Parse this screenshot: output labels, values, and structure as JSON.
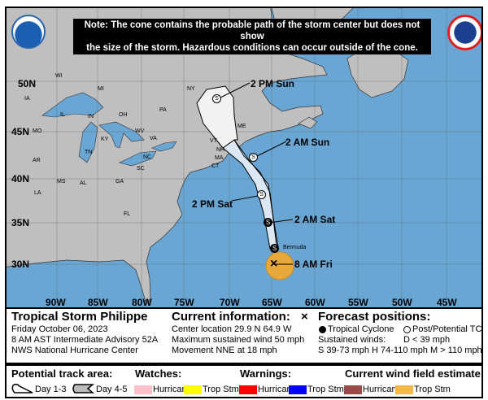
{
  "note": {
    "line1": "Note: The cone contains the probable path of the storm center but does not show",
    "line2": "the size of the storm. Hazardous conditions can occur outside of the cone."
  },
  "logos": {
    "left": "NOAA",
    "right": "NATIONAL WEATHER SERVICE"
  },
  "map": {
    "lat_labels": [
      "50N",
      "45N",
      "40N",
      "35N",
      "30N"
    ],
    "lon_labels": [
      "90W",
      "85W",
      "80W",
      "75W",
      "70W",
      "65W",
      "60W",
      "55W",
      "50W",
      "45W"
    ],
    "states": [
      "WI",
      "MI",
      "IA",
      "IL",
      "IN",
      "OH",
      "PA",
      "NY",
      "MO",
      "KY",
      "WV",
      "VA",
      "TN",
      "NC",
      "AR",
      "SC",
      "MS",
      "AL",
      "GA",
      "LA",
      "FL",
      "ME",
      "VT",
      "NH",
      "MA",
      "CT"
    ],
    "place": "Bermuda",
    "forecast_points": [
      {
        "label": "8 AM Fri",
        "type": "current"
      },
      {
        "label": "",
        "type": "tropical-storm"
      },
      {
        "label": "2 AM Sat",
        "type": "tropical-storm"
      },
      {
        "label": "2 PM Sat",
        "type": "post-tropical"
      },
      {
        "label": "2 AM Sun",
        "type": "post-tropical"
      },
      {
        "label": "2 PM Sun",
        "type": "post-tropical"
      }
    ],
    "symbol": "S",
    "colors": {
      "land": "#bfbfbf",
      "water": "#6aa6d3",
      "cone_day13": "#dbe8f4",
      "cone_day45": "#f2f2f2",
      "wind_trop_stm": "#e8a83a"
    }
  },
  "info": {
    "storm": "Tropical Storm Philippe",
    "date": "Friday October 06, 2023",
    "advisory": "8 AM AST Intermediate Advisory 52A",
    "center": "NWS National Hurricane Center",
    "current_title": "Current information:",
    "current_icon": "×",
    "location": "Center location 29.9 N 64.9 W",
    "wind": "Maximum sustained wind 50 mph",
    "movement": "Movement NNE at 18 mph",
    "forecast_title": "Forecast positions:",
    "tc": "Tropical Cyclone",
    "ptc": "Post/Potential TC",
    "sustained": "Sustained winds:",
    "d": "D < 39 mph",
    "shm": "S 39-73 mph  H 74-110 mph  M > 110 mph"
  },
  "legend": {
    "track_title": "Potential track area:",
    "day13": "Day 1-3",
    "day45": "Day 4-5",
    "watches_title": "Watches:",
    "warnings_title": "Warnings:",
    "wind_title": "Current wind field estimate:",
    "hurricane": "Hurricane",
    "tropstm": "Trop Stm",
    "colors": {
      "watch_hurricane": "#ffc0cb",
      "watch_tropstm": "#ffff00",
      "warn_hurricane": "#ff0000",
      "warn_tropstm": "#0000ff",
      "wind_hurricane": "#9c4a4a",
      "wind_tropstm": "#f5b94a"
    }
  }
}
